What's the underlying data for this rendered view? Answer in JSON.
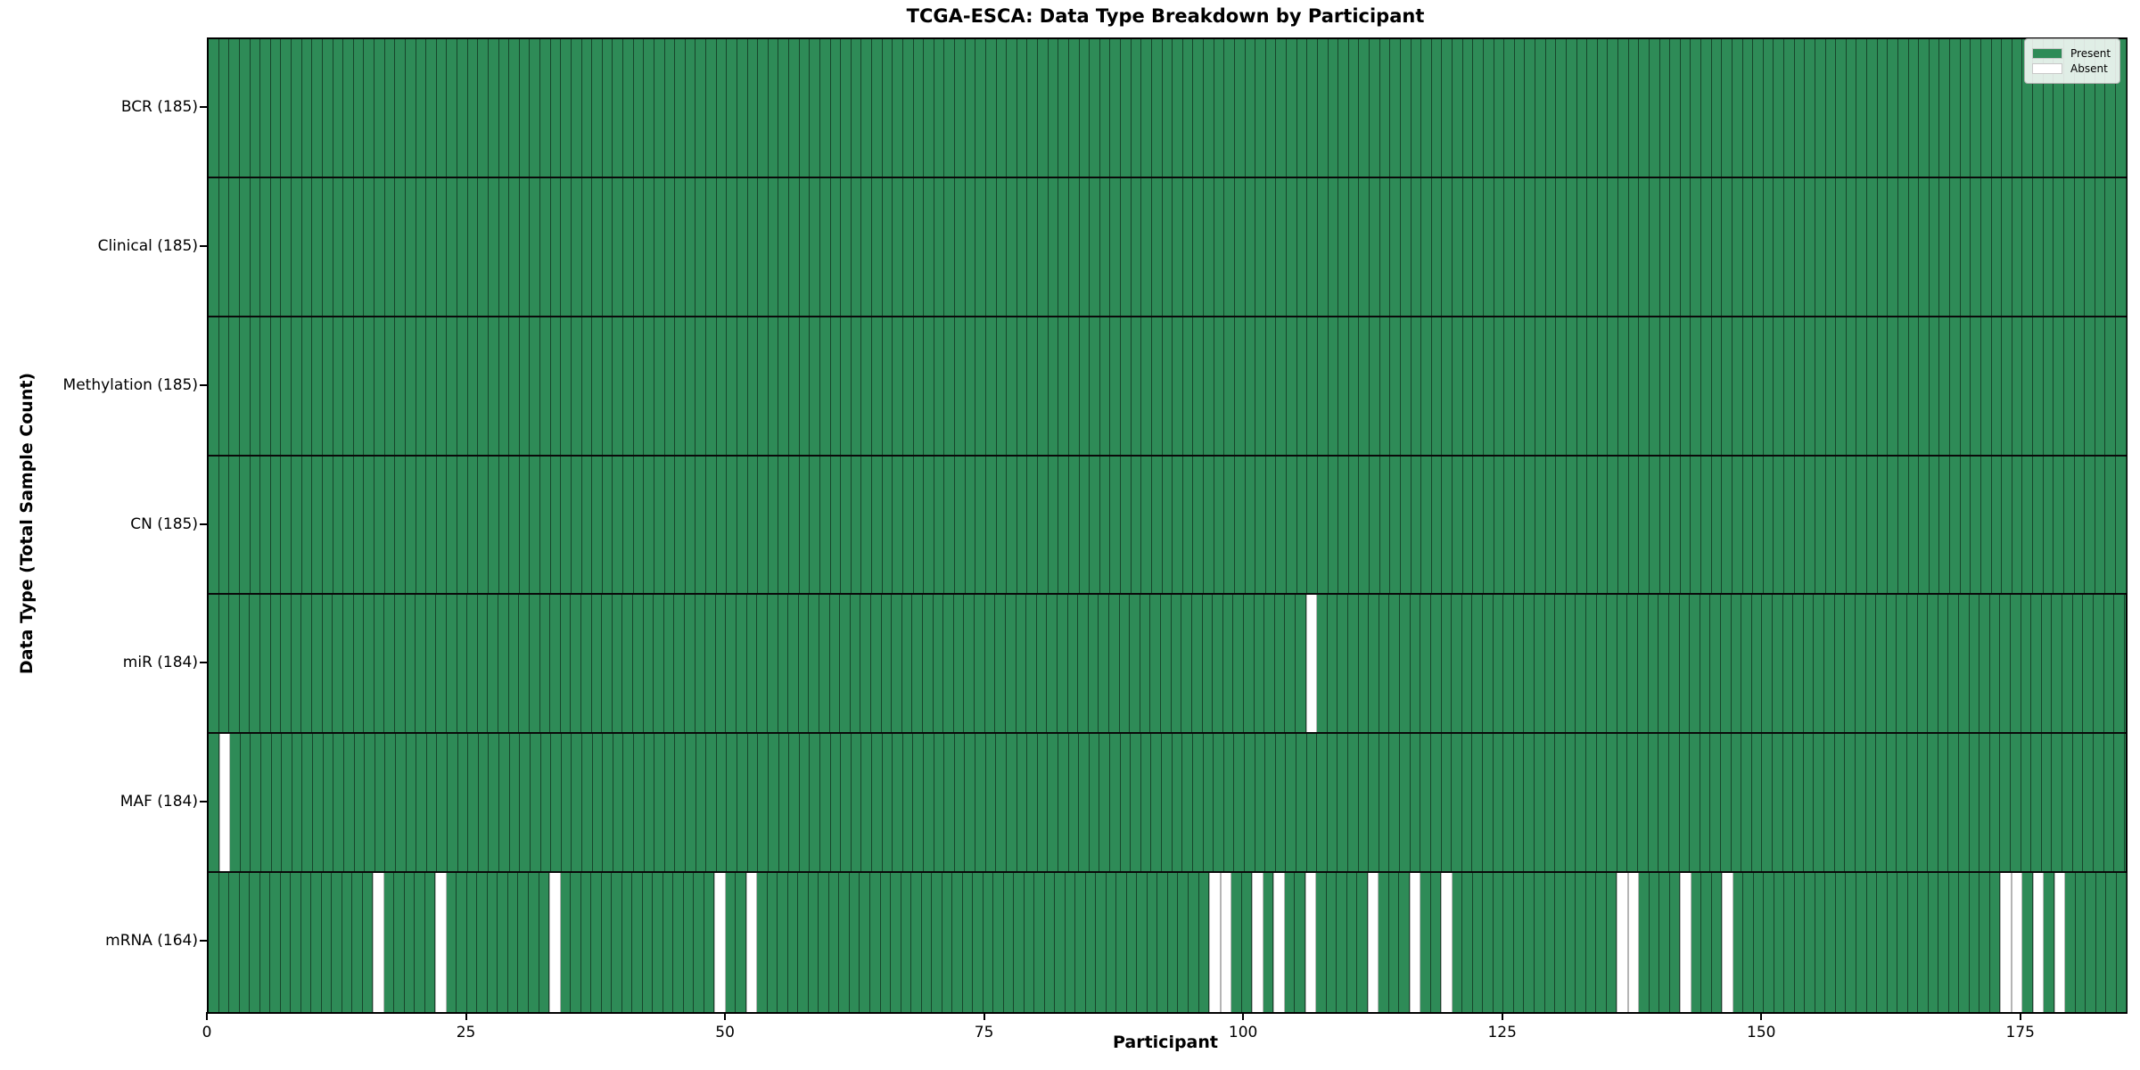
{
  "chart_data": {
    "type": "heatmap",
    "title": "TCGA-ESCA: Data Type Breakdown by Participant",
    "xlabel": "Participant",
    "ylabel": "Data Type (Total Sample Count)",
    "n_participants": 185,
    "x_ticks": [
      0,
      25,
      50,
      75,
      100,
      125,
      150,
      175
    ],
    "xlim": [
      0,
      185
    ],
    "grid": "cell-edges",
    "legend_position": "upper-right",
    "value_legend": {
      "present_label": "Present",
      "absent_label": "Absent"
    },
    "rows": [
      {
        "data_type": "BCR",
        "label": "BCR (185)",
        "present_count": 185,
        "absent_participants": []
      },
      {
        "data_type": "Clinical",
        "label": "Clinical (185)",
        "present_count": 185,
        "absent_participants": []
      },
      {
        "data_type": "Methylation",
        "label": "Methylation (185)",
        "present_count": 185,
        "absent_participants": []
      },
      {
        "data_type": "CN",
        "label": "CN (185)",
        "present_count": 185,
        "absent_participants": []
      },
      {
        "data_type": "miR",
        "label": "miR (184)",
        "present_count": 184,
        "absent_participants": [
          106
        ]
      },
      {
        "data_type": "MAF",
        "label": "MAF (184)",
        "present_count": 184,
        "absent_participants": [
          1
        ]
      },
      {
        "data_type": "mRNA",
        "label": "mRNA (164)",
        "present_count": 164,
        "absent_participants": [
          16,
          22,
          33,
          49,
          52,
          97,
          98,
          101,
          103,
          106,
          112,
          116,
          119,
          136,
          137,
          142,
          146,
          173,
          174,
          176,
          178
        ]
      }
    ],
    "colors": {
      "present": "#2e8b57",
      "absent": "#ffffff",
      "cell_edge": "rgba(0,0,0,0.5)",
      "row_separator": "#0a0a0a",
      "plot_border": "#000000"
    }
  }
}
